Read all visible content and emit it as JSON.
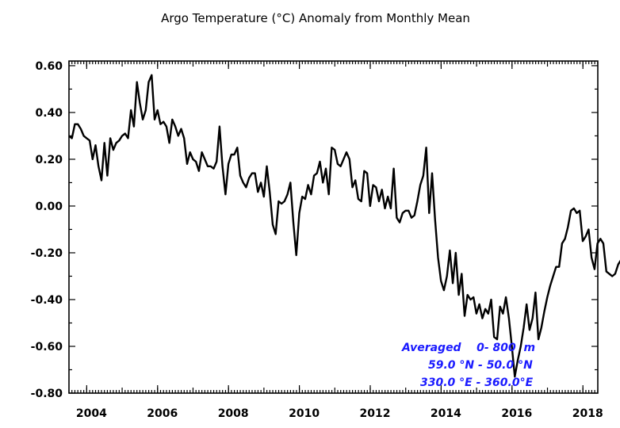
{
  "chart_data": {
    "type": "line",
    "title": "Argo Temperature (°C) Anomaly from Monthly Mean",
    "xlabel": "",
    "ylabel": "",
    "xlim": [
      2003.5,
      2018.42
    ],
    "ylim": [
      -0.8,
      0.62
    ],
    "yticks": [
      0.6,
      0.4,
      0.2,
      0.0,
      -0.2,
      -0.4,
      -0.6,
      -0.8
    ],
    "ytick_labels": [
      "0.60",
      "0.40",
      "0.20",
      "0.00",
      "-0.20",
      "-0.40",
      "-0.60",
      "-0.80"
    ],
    "xticks": [
      2004,
      2006,
      2008,
      2010,
      2012,
      2014,
      2016,
      2018
    ],
    "xtick_labels": [
      "2004",
      "2006",
      "2008",
      "2010",
      "2012",
      "2014",
      "2016",
      "2018"
    ],
    "grid": false,
    "series": [
      {
        "x_start": 2003.5,
        "x_step": 0.0833,
        "values": [
          0.3,
          0.29,
          0.35,
          0.35,
          0.33,
          0.3,
          0.29,
          0.28,
          0.2,
          0.26,
          0.17,
          0.11,
          0.27,
          0.13,
          0.29,
          0.24,
          0.27,
          0.28,
          0.3,
          0.31,
          0.29,
          0.41,
          0.34,
          0.53,
          0.44,
          0.37,
          0.41,
          0.53,
          0.56,
          0.37,
          0.41,
          0.35,
          0.36,
          0.34,
          0.27,
          0.37,
          0.34,
          0.3,
          0.33,
          0.29,
          0.18,
          0.23,
          0.2,
          0.19,
          0.15,
          0.23,
          0.2,
          0.17,
          0.17,
          0.16,
          0.19,
          0.34,
          0.17,
          0.05,
          0.18,
          0.22,
          0.22,
          0.25,
          0.13,
          0.1,
          0.08,
          0.12,
          0.14,
          0.14,
          0.06,
          0.1,
          0.04,
          0.17,
          0.06,
          -0.08,
          -0.12,
          0.02,
          0.01,
          0.02,
          0.05,
          0.1,
          -0.07,
          -0.21,
          -0.03,
          0.04,
          0.03,
          0.09,
          0.05,
          0.13,
          0.14,
          0.19,
          0.1,
          0.16,
          0.05,
          0.25,
          0.24,
          0.18,
          0.17,
          0.2,
          0.23,
          0.2,
          0.08,
          0.11,
          0.03,
          0.02,
          0.15,
          0.14,
          0.0,
          0.09,
          0.08,
          0.02,
          0.07,
          -0.01,
          0.04,
          -0.01,
          0.16,
          -0.05,
          -0.07,
          -0.03,
          -0.02,
          -0.02,
          -0.05,
          -0.04,
          0.02,
          0.09,
          0.13,
          0.25,
          -0.03,
          0.14,
          -0.06,
          -0.22,
          -0.32,
          -0.36,
          -0.3,
          -0.19,
          -0.33,
          -0.2,
          -0.38,
          -0.29,
          -0.47,
          -0.38,
          -0.4,
          -0.39,
          -0.46,
          -0.42,
          -0.48,
          -0.44,
          -0.46,
          -0.4,
          -0.56,
          -0.57,
          -0.43,
          -0.46,
          -0.39,
          -0.48,
          -0.6,
          -0.73,
          -0.66,
          -0.6,
          -0.52,
          -0.42,
          -0.53,
          -0.48,
          -0.37,
          -0.57,
          -0.52,
          -0.45,
          -0.39,
          -0.34,
          -0.3,
          -0.26,
          -0.26,
          -0.16,
          -0.14,
          -0.09,
          -0.02,
          -0.01,
          -0.03,
          -0.02,
          -0.15,
          -0.13,
          -0.1,
          -0.22,
          -0.27,
          -0.16,
          -0.14,
          -0.16,
          -0.28,
          -0.29,
          -0.3,
          -0.29,
          -0.25,
          -0.23,
          -0.25,
          -0.26
        ]
      }
    ],
    "annotations": {
      "line1": "Averaged    0- 800  m",
      "line2": "59.0 °N - 50.0 °N",
      "line3": "330.0 °E - 360.0°E"
    }
  }
}
